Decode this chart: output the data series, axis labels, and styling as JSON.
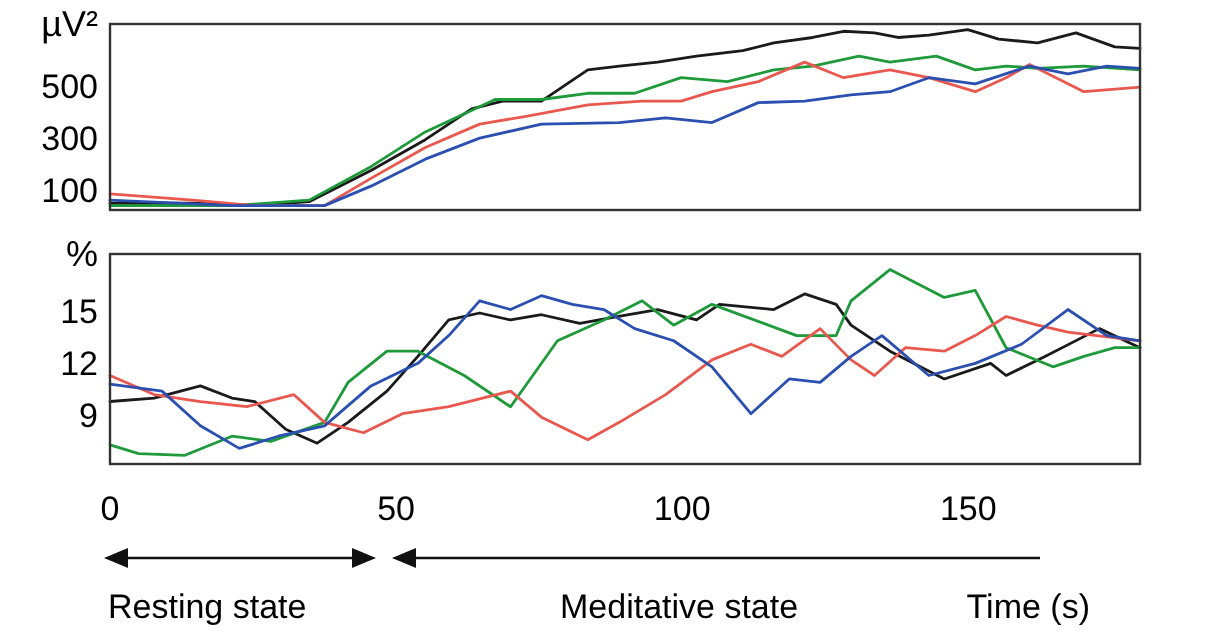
{
  "chart_data": [
    {
      "type": "line",
      "ylabel": "µV²",
      "xlim": [
        0,
        180
      ],
      "ylim": [
        23,
        740
      ],
      "yticks": [
        100,
        300,
        500
      ],
      "tick_labels": "y",
      "grid": false,
      "series": [
        {
          "color": "#1a1a1a",
          "x": [
            0,
            14.5,
            25.3,
            34.8,
            45.6,
            55.1,
            63.2,
            68.6,
            75.4,
            83.5,
            89,
            95.7,
            102.5,
            110.6,
            116,
            122.8,
            128.2,
            133.6,
            137.7,
            143.1,
            149.9,
            155.3,
            162.1,
            168.8,
            175.6,
            180
          ],
          "values": [
            49,
            49,
            40,
            55,
            175,
            294,
            413,
            443,
            443,
            563,
            578,
            593,
            616,
            637,
            667,
            688,
            712,
            706,
            688,
            697,
            718,
            682,
            667,
            706,
            652,
            646
          ]
        },
        {
          "color": "#1f9a3a",
          "x": [
            0,
            21.3,
            34.8,
            45.6,
            55.1,
            67.3,
            75.4,
            83.5,
            91.7,
            99.8,
            107.9,
            116,
            122.8,
            130.9,
            136.3,
            144.4,
            151.2,
            156.6,
            162.1,
            170.2,
            180
          ],
          "values": [
            40,
            40,
            61,
            190,
            324,
            449,
            449,
            473,
            473,
            533,
            518,
            563,
            578,
            616,
            593,
            616,
            563,
            578,
            569,
            578,
            563
          ]
        },
        {
          "color": "#e8584f",
          "x": [
            0,
            14.5,
            25.3,
            37.5,
            45.6,
            55.1,
            64.6,
            72.7,
            83.5,
            93,
            99.8,
            105.2,
            113.3,
            121.4,
            128.2,
            136.3,
            143.1,
            151.2,
            156.6,
            160.7,
            170.2,
            180
          ],
          "values": [
            85,
            61,
            40,
            40,
            145,
            264,
            354,
            384,
            428,
            443,
            443,
            479,
            518,
            593,
            533,
            563,
            533,
            479,
            533,
            584,
            479,
            497
          ]
        },
        {
          "color": "#2a4fb0",
          "x": [
            0,
            21.3,
            37.5,
            45.6,
            55.1,
            64.6,
            75.4,
            89,
            97.1,
            105.2,
            113.3,
            121.4,
            129.5,
            136.3,
            143.1,
            151.2,
            160.7,
            167.4,
            174.2,
            180
          ],
          "values": [
            61,
            40,
            40,
            115,
            219,
            300,
            354,
            360,
            378,
            360,
            437,
            443,
            467,
            479,
            533,
            509,
            578,
            548,
            578,
            569
          ]
        }
      ]
    },
    {
      "type": "line",
      "ylabel": "%",
      "xlabel": "Time (s)",
      "xlim": [
        0,
        180
      ],
      "ylim": [
        6.2,
        18.3
      ],
      "xticks": [
        0,
        50,
        100,
        150
      ],
      "yticks": [
        9,
        12,
        15
      ],
      "grid": false,
      "annotations": [
        "Resting state",
        "Meditative state"
      ],
      "series": [
        {
          "color": "#1a1a1a",
          "x": [
            0,
            7.7,
            15.8,
            21.3,
            25.3,
            30.7,
            36.2,
            41.6,
            48.4,
            53.8,
            59.2,
            64.6,
            70,
            75.4,
            82.1,
            88.9,
            95.7,
            102.5,
            106.5,
            116,
            121.4,
            126.9,
            129.5,
            136.3,
            145.8,
            153.9,
            156.6,
            163.4,
            172.9,
            180
          ],
          "values": [
            9.8,
            10,
            10.7,
            10,
            9.8,
            8.2,
            7.4,
            8.6,
            10.4,
            12.4,
            14.5,
            14.9,
            14.5,
            14.8,
            14.3,
            14.7,
            15.1,
            14.5,
            15.4,
            15.1,
            16,
            15.4,
            14.2,
            12.7,
            11.1,
            12,
            11.3,
            12.4,
            14,
            12.9
          ]
        },
        {
          "color": "#1f9a3a",
          "x": [
            0,
            5,
            13.1,
            21.3,
            28.1,
            37.5,
            41.6,
            48.4,
            53.8,
            61.9,
            70,
            78.2,
            86.3,
            93,
            98.5,
            105.2,
            120,
            126.9,
            129.5,
            136.3,
            145.8,
            151.2,
            156.6,
            164.8,
            170.2,
            175.6,
            180
          ],
          "values": [
            7.3,
            6.8,
            6.7,
            7.8,
            7.5,
            8.6,
            10.9,
            12.7,
            12.7,
            11.3,
            9.5,
            13.3,
            14.5,
            15.6,
            14.2,
            15.4,
            13.6,
            13.6,
            15.6,
            17.4,
            15.8,
            16.2,
            12.9,
            11.8,
            12.4,
            12.9,
            12.9
          ]
        },
        {
          "color": "#e8584f",
          "x": [
            0,
            7.7,
            15.8,
            23.9,
            32.1,
            37.5,
            44.3,
            51.1,
            59.2,
            70,
            75.4,
            83.5,
            89,
            97.1,
            105.2,
            112,
            117.4,
            124.1,
            129.5,
            133.6,
            139,
            145.8,
            151.2,
            156.6,
            162.1,
            167.4,
            180
          ],
          "values": [
            11.3,
            10.2,
            9.8,
            9.5,
            10.2,
            8.6,
            8,
            9.1,
            9.5,
            10.4,
            8.9,
            7.6,
            8.6,
            10.2,
            12.2,
            13.1,
            12.4,
            14,
            12.2,
            11.3,
            12.9,
            12.7,
            13.6,
            14.7,
            14.2,
            13.8,
            13.3
          ]
        },
        {
          "color": "#2a4fb0",
          "x": [
            0,
            9.1,
            15.8,
            22.6,
            29.4,
            37.5,
            45.6,
            53.8,
            59.2,
            64.6,
            70,
            75.4,
            80.8,
            86.3,
            91.7,
            98.5,
            105.2,
            112,
            118.7,
            124.1,
            129.5,
            134.9,
            143.1,
            151.2,
            159.3,
            167.4,
            174.2,
            180
          ],
          "values": [
            10.8,
            10.4,
            8.4,
            7.1,
            7.8,
            8.4,
            10.7,
            12,
            13.6,
            15.6,
            15.1,
            15.9,
            15.4,
            15.1,
            14,
            13.3,
            11.8,
            9.1,
            11.1,
            10.9,
            12.4,
            13.6,
            11.3,
            12,
            13.1,
            15.1,
            13.6,
            13.3
          ]
        }
      ]
    }
  ]
}
